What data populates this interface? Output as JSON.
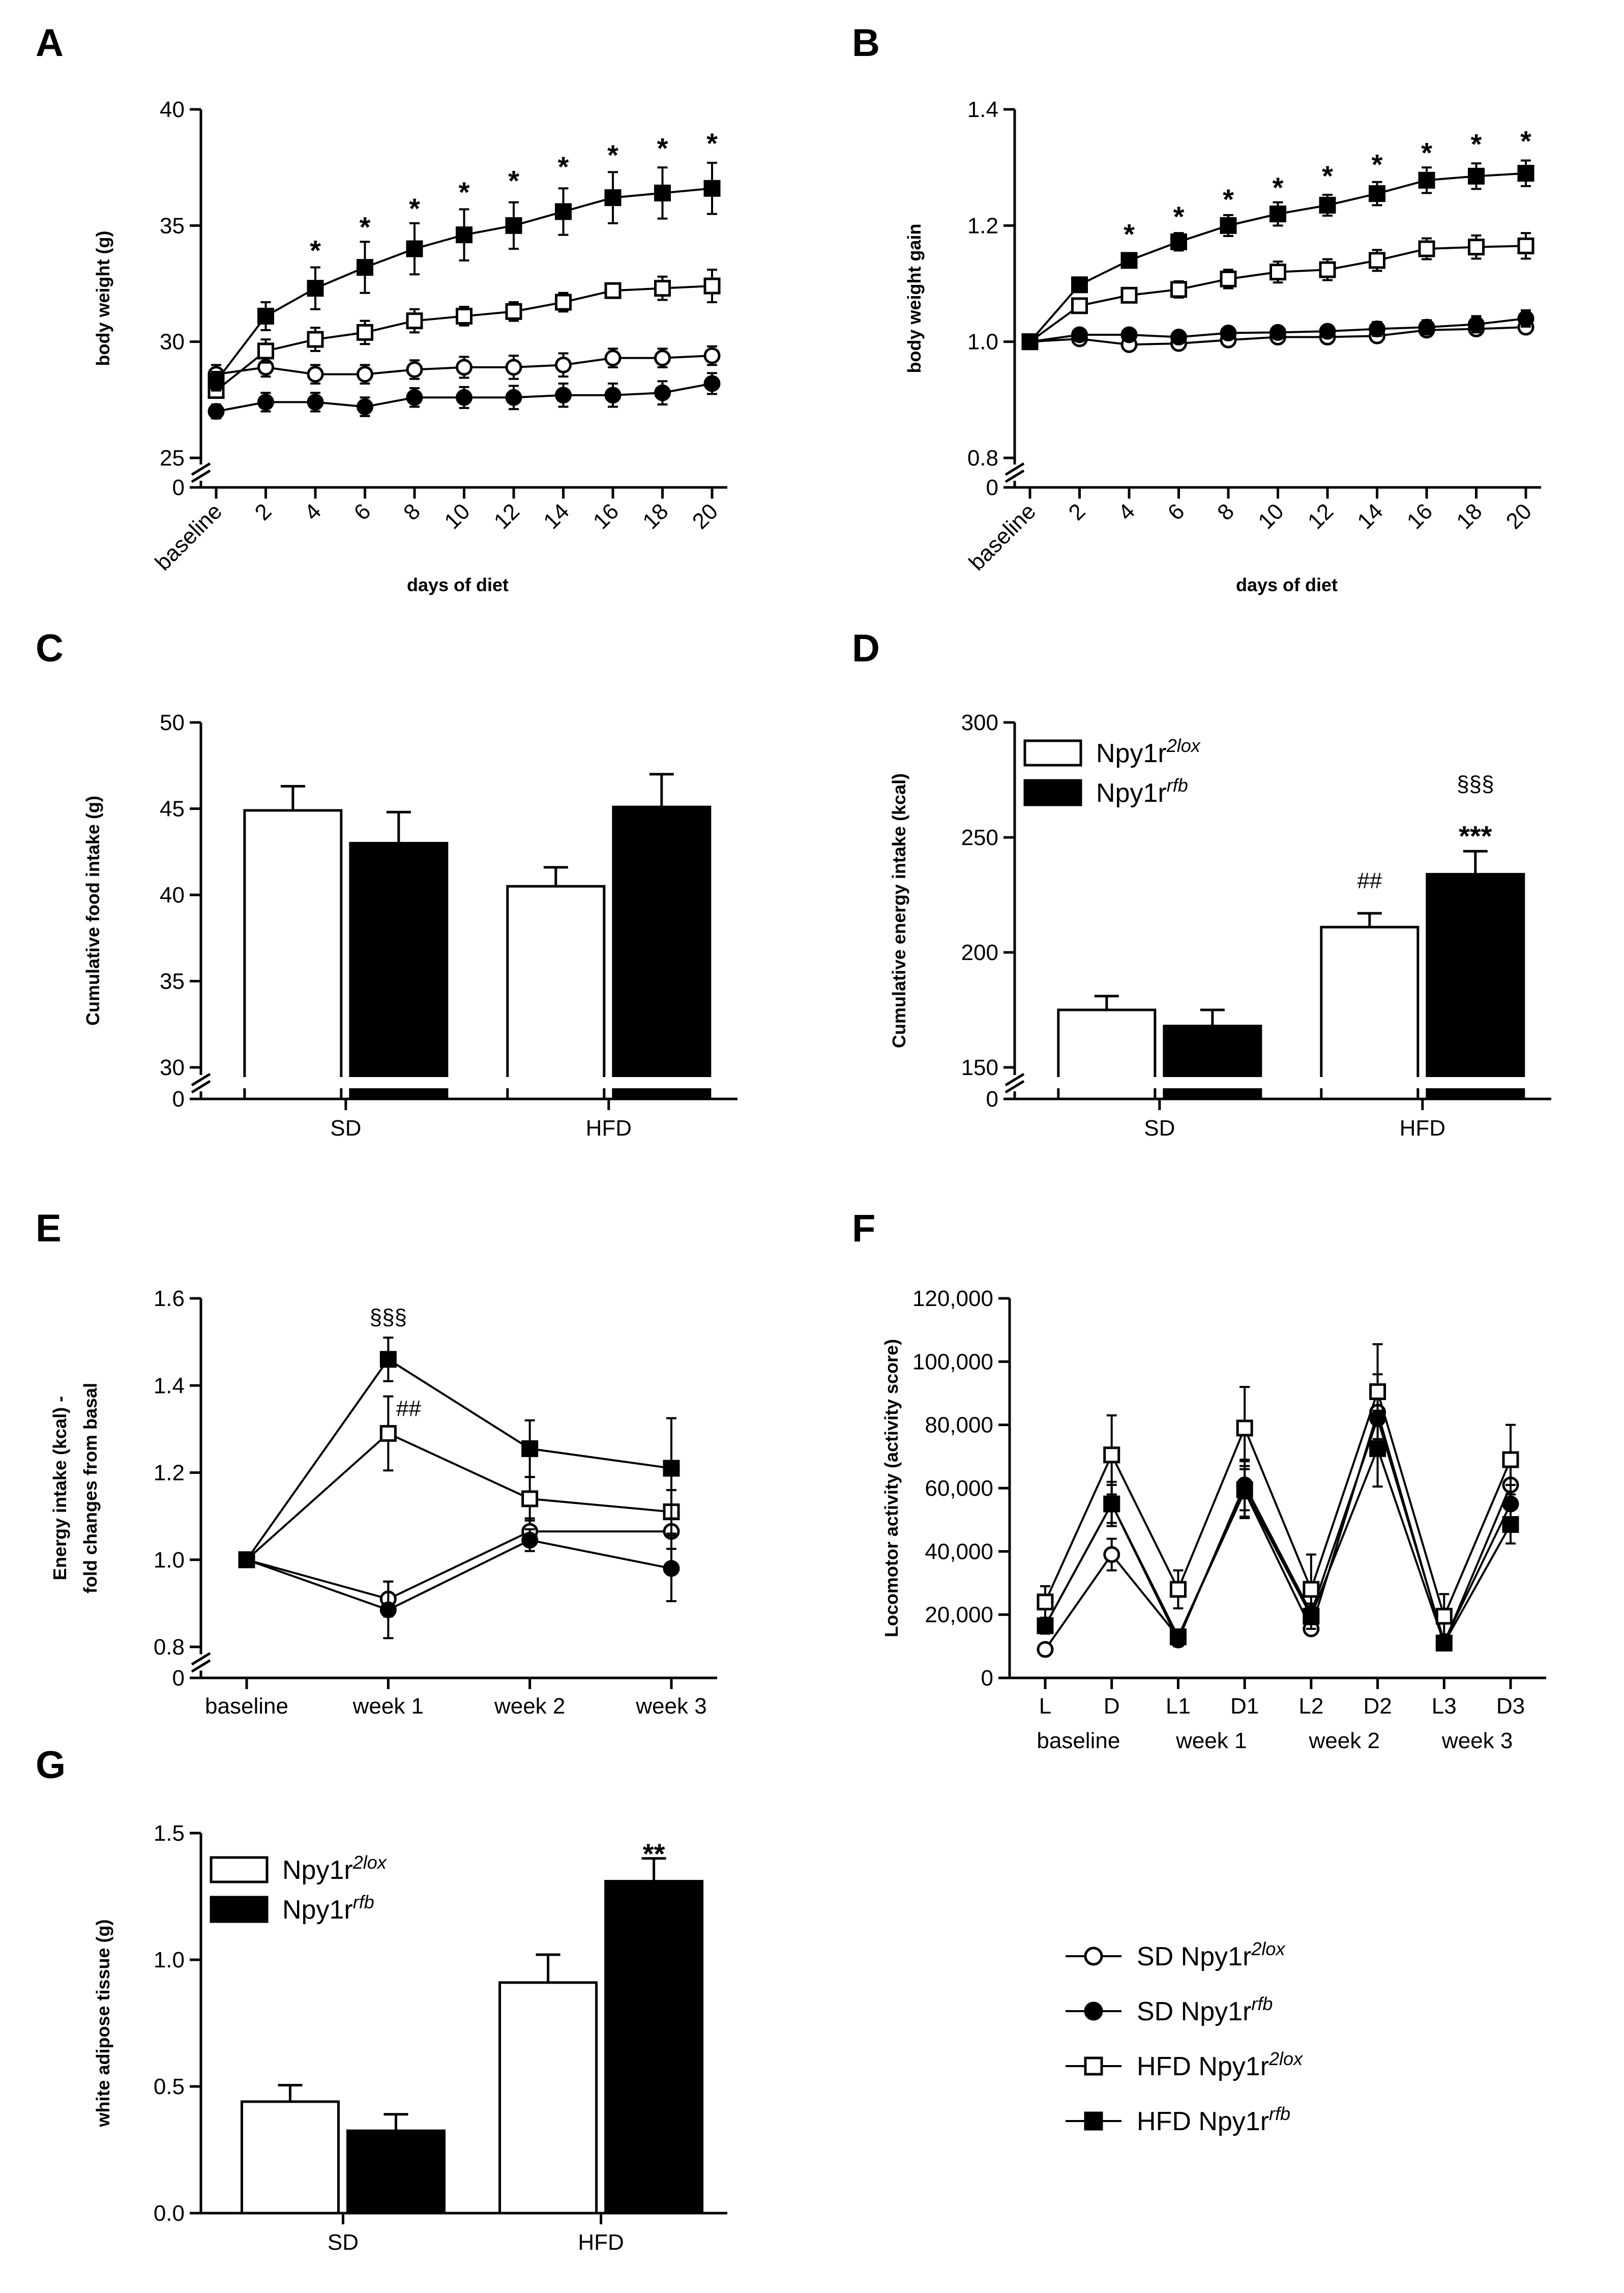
{
  "colors": {
    "ink": "#000000",
    "paper": "#ffffff"
  },
  "legend_lines": [
    {
      "label": "SD Npy1r",
      "sup": "2lox",
      "marker": "circle",
      "fill": "open"
    },
    {
      "label": "SD Npy1r",
      "sup": "rfb",
      "marker": "circle",
      "fill": "filled"
    },
    {
      "label": "HFD Npy1r",
      "sup": "2lox",
      "marker": "square",
      "fill": "open"
    },
    {
      "label": "HFD Npy1r",
      "sup": "rfb",
      "marker": "square",
      "fill": "filled"
    }
  ],
  "legend_bars": [
    {
      "label": "Npy1r",
      "sup": "2lox",
      "fill": "open"
    },
    {
      "label": "Npy1r",
      "sup": "rfb",
      "fill": "filled"
    }
  ],
  "chart_data": [
    {
      "panel": "A",
      "type": "line",
      "ylabel": "body weight  (g)",
      "xlabel": "days of diet",
      "categories": [
        "baseline",
        "2",
        "4",
        "6",
        "8",
        "10",
        "12",
        "14",
        "16",
        "18",
        "20"
      ],
      "ylim": [
        25,
        40
      ],
      "yticks": [
        "25",
        "30",
        "35",
        "40"
      ],
      "axis_break": true,
      "zero_label": "0",
      "series": [
        {
          "name": "SD Npy1r2lox",
          "marker": "circle",
          "fill": "open",
          "values": [
            28.6,
            28.9,
            28.6,
            28.6,
            28.8,
            28.9,
            28.9,
            29.0,
            29.3,
            29.3,
            29.4
          ],
          "errors": [
            0.4,
            0.4,
            0.4,
            0.4,
            0.4,
            0.45,
            0.5,
            0.5,
            0.4,
            0.4,
            0.4
          ]
        },
        {
          "name": "SD Npy1rrfb",
          "marker": "circle",
          "fill": "filled",
          "values": [
            27.0,
            27.4,
            27.4,
            27.2,
            27.6,
            27.6,
            27.6,
            27.7,
            27.7,
            27.8,
            28.2
          ],
          "errors": [
            0.3,
            0.4,
            0.4,
            0.4,
            0.4,
            0.45,
            0.5,
            0.5,
            0.5,
            0.5,
            0.45
          ]
        },
        {
          "name": "HFD Npy1r2lox",
          "marker": "square",
          "fill": "open",
          "values": [
            27.9,
            29.6,
            30.1,
            30.4,
            30.9,
            31.1,
            31.3,
            31.7,
            32.2,
            32.3,
            32.4
          ],
          "errors": [
            0.3,
            0.5,
            0.5,
            0.5,
            0.5,
            0.4,
            0.4,
            0.4,
            0.3,
            0.5,
            0.7
          ]
        },
        {
          "name": "HFD Npy1rrfb",
          "marker": "square",
          "fill": "filled",
          "values": [
            28.3,
            31.1,
            32.3,
            33.2,
            34.0,
            34.6,
            35.0,
            35.6,
            36.2,
            36.4,
            36.6
          ],
          "errors": [
            0.4,
            0.6,
            0.9,
            1.1,
            1.1,
            1.1,
            1.0,
            1.0,
            1.1,
            1.1,
            1.1
          ]
        }
      ],
      "annotations": [
        {
          "x": "4",
          "y": 34.3,
          "text": "*"
        },
        {
          "x": "6",
          "y": 35.3,
          "text": "*"
        },
        {
          "x": "8",
          "y": 36.1,
          "text": "*"
        },
        {
          "x": "10",
          "y": 36.8,
          "text": "*"
        },
        {
          "x": "12",
          "y": 37.3,
          "text": "*"
        },
        {
          "x": "14",
          "y": 37.9,
          "text": "*"
        },
        {
          "x": "16",
          "y": 38.4,
          "text": "*"
        },
        {
          "x": "18",
          "y": 38.7,
          "text": "*"
        },
        {
          "x": "20",
          "y": 38.9,
          "text": "*"
        }
      ]
    },
    {
      "panel": "B",
      "type": "line",
      "ylabel": "body weight gain",
      "xlabel": "days of diet",
      "categories": [
        "baseline",
        "2",
        "4",
        "6",
        "8",
        "10",
        "12",
        "14",
        "16",
        "18",
        "20"
      ],
      "ylim": [
        0.8,
        1.4
      ],
      "yticks": [
        "0.8",
        "1.0",
        "1.2",
        "1.4"
      ],
      "axis_break": true,
      "zero_label": "0",
      "series": [
        {
          "name": "SD Npy1r2lox",
          "marker": "circle",
          "fill": "open",
          "values": [
            1.0,
            1.005,
            0.995,
            0.997,
            1.003,
            1.008,
            1.008,
            1.01,
            1.02,
            1.022,
            1.025
          ],
          "errors": [
            0.005,
            0.008,
            0.008,
            0.008,
            0.008,
            0.01,
            0.01,
            0.01,
            0.01,
            0.01,
            0.01
          ]
        },
        {
          "name": "SD Npy1rrfb",
          "marker": "circle",
          "fill": "filled",
          "values": [
            1.0,
            1.012,
            1.012,
            1.008,
            1.015,
            1.016,
            1.018,
            1.022,
            1.025,
            1.03,
            1.04
          ],
          "errors": [
            0.005,
            0.008,
            0.008,
            0.008,
            0.01,
            0.01,
            0.01,
            0.012,
            0.012,
            0.014,
            0.014
          ]
        },
        {
          "name": "HFD Npy1r2lox",
          "marker": "square",
          "fill": "open",
          "values": [
            1.0,
            1.062,
            1.08,
            1.09,
            1.108,
            1.12,
            1.124,
            1.14,
            1.16,
            1.163,
            1.165
          ],
          "errors": [
            0.005,
            0.01,
            0.012,
            0.014,
            0.016,
            0.018,
            0.018,
            0.018,
            0.018,
            0.02,
            0.022
          ]
        },
        {
          "name": "HFD Npy1rrfb",
          "marker": "square",
          "fill": "filled",
          "values": [
            1.0,
            1.098,
            1.14,
            1.172,
            1.2,
            1.22,
            1.235,
            1.255,
            1.278,
            1.285,
            1.29
          ],
          "errors": [
            0.005,
            0.008,
            0.01,
            0.015,
            0.018,
            0.02,
            0.018,
            0.02,
            0.022,
            0.022,
            0.022
          ]
        }
      ],
      "annotations": [
        {
          "x": "4",
          "y": 1.2,
          "text": "*"
        },
        {
          "x": "6",
          "y": 1.23,
          "text": "*"
        },
        {
          "x": "8",
          "y": 1.26,
          "text": "*"
        },
        {
          "x": "10",
          "y": 1.28,
          "text": "*"
        },
        {
          "x": "12",
          "y": 1.3,
          "text": "*"
        },
        {
          "x": "14",
          "y": 1.32,
          "text": "*"
        },
        {
          "x": "16",
          "y": 1.34,
          "text": "*"
        },
        {
          "x": "18",
          "y": 1.355,
          "text": "*"
        },
        {
          "x": "20",
          "y": 1.36,
          "text": "*"
        }
      ]
    },
    {
      "panel": "C",
      "type": "bar",
      "ylabel": "Cumulative food intake (g)",
      "categories": [
        "SD",
        "HFD"
      ],
      "ylim": [
        30,
        50
      ],
      "yticks": [
        "30",
        "35",
        "40",
        "45",
        "50"
      ],
      "axis_break": true,
      "zero_label": "0",
      "series": [
        {
          "name": "Npy1r2lox",
          "fill": "open",
          "values": [
            44.9,
            40.5
          ],
          "errors": [
            1.4,
            1.1
          ]
        },
        {
          "name": "Npy1rrfb",
          "fill": "filled",
          "values": [
            43.0,
            45.1
          ],
          "errors": [
            1.8,
            1.9
          ]
        }
      ]
    },
    {
      "panel": "D",
      "type": "bar",
      "ylabel": "Cumulative energy intake (kcal)",
      "categories": [
        "SD",
        "HFD"
      ],
      "ylim": [
        150,
        300
      ],
      "yticks": [
        "150",
        "200",
        "250",
        "300"
      ],
      "axis_break": true,
      "zero_label": "0",
      "series": [
        {
          "name": "Npy1r2lox",
          "fill": "open",
          "values": [
            175,
            211
          ],
          "errors": [
            6,
            6
          ]
        },
        {
          "name": "Npy1rrfb",
          "fill": "filled",
          "values": [
            168,
            234
          ],
          "errors": [
            7,
            10
          ]
        }
      ],
      "annotations": [
        {
          "category": "HFD",
          "series": 0,
          "y": 228,
          "text": "##",
          "style": "small"
        },
        {
          "category": "HFD",
          "series": 1,
          "y": 270,
          "text": "§§§",
          "style": "small"
        },
        {
          "category": "HFD",
          "series": 1,
          "y": 253,
          "text": "***",
          "style": "bold"
        }
      ]
    },
    {
      "panel": "E",
      "type": "line",
      "ylabel": "Energy intake (kcal) -",
      "ylabel2": "fold changes from basal",
      "categories": [
        "baseline",
        "week 1",
        "week 2",
        "week 3"
      ],
      "ylim": [
        0.8,
        1.6
      ],
      "yticks": [
        "0.8",
        "1.0",
        "1.2",
        "1.4",
        "1.6"
      ],
      "axis_break": true,
      "zero_label": "0",
      "series": [
        {
          "name": "SD Npy1r2lox",
          "marker": "circle",
          "fill": "open",
          "values": [
            1.0,
            0.91,
            1.065,
            1.065
          ],
          "errors": [
            0.0,
            0.04,
            0.03,
            0.04
          ]
        },
        {
          "name": "SD Npy1rrfb",
          "marker": "circle",
          "fill": "filled",
          "values": [
            1.0,
            0.885,
            1.045,
            0.98
          ],
          "errors": [
            0.0,
            0.065,
            0.025,
            0.075
          ]
        },
        {
          "name": "HFD Npy1r2lox",
          "marker": "square",
          "fill": "open",
          "values": [
            1.0,
            1.29,
            1.14,
            1.11
          ],
          "errors": [
            0.0,
            0.085,
            0.05,
            0.05
          ]
        },
        {
          "name": "HFD Npy1rrfb",
          "marker": "square",
          "fill": "filled",
          "values": [
            1.0,
            1.46,
            1.255,
            1.21
          ],
          "errors": [
            0.0,
            0.05,
            0.065,
            0.115
          ]
        }
      ],
      "annotations": [
        {
          "x": "week 1",
          "y": 1.54,
          "text": "§§§",
          "style": "small"
        },
        {
          "x": "week 1",
          "y": 1.33,
          "text": "##",
          "style": "small",
          "dx": 1
        }
      ]
    },
    {
      "panel": "F",
      "type": "line",
      "ylabel": "Locomotor activity (activity score)",
      "categories": [
        "L",
        "D",
        "L1",
        "D1",
        "L2",
        "D2",
        "L3",
        "D3"
      ],
      "group_labels": [
        {
          "label": "baseline",
          "between": [
            "L",
            "D"
          ]
        },
        {
          "label": "week 1",
          "between": [
            "L1",
            "D1"
          ]
        },
        {
          "label": "week 2",
          "between": [
            "L2",
            "D2"
          ]
        },
        {
          "label": "week 3",
          "between": [
            "L3",
            "D3"
          ]
        }
      ],
      "ylim": [
        0,
        120000
      ],
      "yticks": [
        "0",
        "20,000",
        "40,000",
        "60,000",
        "80,000",
        "100,000",
        "120,000"
      ],
      "series": [
        {
          "name": "SD Npy1r2lox",
          "marker": "circle",
          "fill": "open",
          "values": [
            9000,
            39000,
            13000,
            59000,
            15500,
            84000,
            11000,
            61000
          ],
          "errors": [
            1000,
            5000,
            2000,
            8000,
            1500,
            12000,
            2000,
            7000
          ]
        },
        {
          "name": "SD Npy1rrfb",
          "marker": "circle",
          "fill": "filled",
          "values": [
            16500,
            55000,
            12000,
            61000,
            20500,
            82000,
            11500,
            55000
          ],
          "errors": [
            2500,
            6000,
            2000,
            8000,
            3000,
            10000,
            2000,
            6000
          ]
        },
        {
          "name": "HFD Npy1r2lox",
          "marker": "square",
          "fill": "open",
          "values": [
            24000,
            70500,
            28000,
            79000,
            28000,
            90500,
            19500,
            69000
          ],
          "errors": [
            5000,
            12500,
            6000,
            13000,
            11000,
            15000,
            7000,
            11000
          ]
        },
        {
          "name": "HFD Npy1rrfb",
          "marker": "square",
          "fill": "filled",
          "values": [
            16500,
            55000,
            13000,
            59500,
            19500,
            72500,
            11000,
            48500
          ],
          "errors": [
            2500,
            7000,
            2000,
            9000,
            4000,
            12000,
            2000,
            6000
          ]
        }
      ]
    },
    {
      "panel": "G",
      "type": "bar",
      "ylabel": "white adipose tissue (g)",
      "categories": [
        "SD",
        "HFD"
      ],
      "ylim": [
        0,
        1.5
      ],
      "yticks": [
        "0.0",
        "0.5",
        "1.0",
        "1.5"
      ],
      "series": [
        {
          "name": "Npy1r2lox",
          "fill": "open",
          "values": [
            0.44,
            0.91
          ],
          "errors": [
            0.065,
            0.11
          ]
        },
        {
          "name": "Npy1rrfb",
          "fill": "filled",
          "values": [
            0.325,
            1.31
          ],
          "errors": [
            0.065,
            0.09
          ]
        }
      ],
      "annotations": [
        {
          "category": "HFD",
          "series": 1,
          "y": 1.44,
          "text": "**",
          "style": "bold"
        }
      ]
    }
  ]
}
